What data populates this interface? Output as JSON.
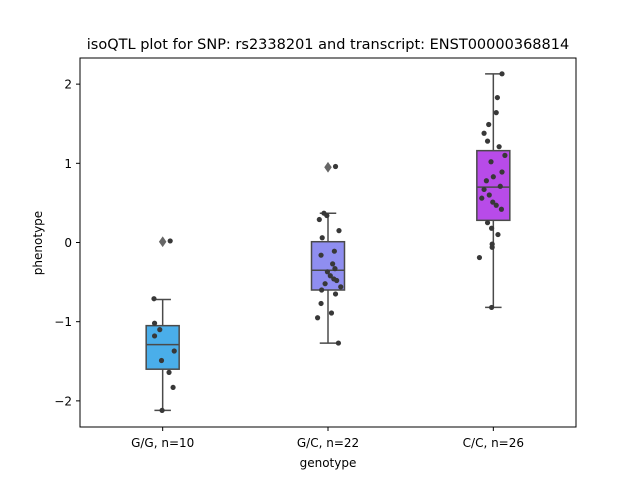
{
  "chart_data": {
    "type": "box",
    "title": "isoQTL plot for SNP: rs2338201 and transcript: ENST00000368814",
    "xlabel": "genotype",
    "ylabel": "phenotype",
    "ylim": [
      -2.33,
      2.33
    ],
    "yticks": [
      -2,
      -1,
      0,
      1,
      2
    ],
    "ytick_labels": [
      "−2",
      "−1",
      "0",
      "1",
      "2"
    ],
    "grid": false,
    "categories": [
      "G/G, n=10",
      "G/C, n=22",
      "C/C, n=26"
    ],
    "boxes": [
      {
        "category": "G/G, n=10",
        "color": "#4aaeea",
        "whisker_low": -2.12,
        "q1": -1.6,
        "median": -1.29,
        "q3": -1.05,
        "whisker_high": -0.72,
        "outliers": [
          0.01
        ],
        "points": [
          [
            -0.15,
            -0.71
          ],
          [
            -0.14,
            -1.02
          ],
          [
            -0.05,
            -1.1
          ],
          [
            -0.14,
            -1.18
          ],
          [
            0.2,
            -1.37
          ],
          [
            -0.02,
            -1.49
          ],
          [
            0.11,
            -1.64
          ],
          [
            0.18,
            -1.83
          ],
          [
            -0.01,
            -2.12
          ],
          [
            0.13,
            0.02
          ]
        ]
      },
      {
        "category": "G/C, n=22",
        "color": "#8f8ef0",
        "whisker_low": -1.27,
        "q1": -0.6,
        "median": -0.35,
        "q3": 0.01,
        "whisker_high": 0.37,
        "outliers": [
          0.95
        ],
        "points": [
          [
            0.13,
            0.96
          ],
          [
            -0.07,
            0.37
          ],
          [
            -0.02,
            0.34
          ],
          [
            -0.15,
            0.29
          ],
          [
            0.19,
            0.15
          ],
          [
            -0.1,
            0.06
          ],
          [
            0.11,
            -0.11
          ],
          [
            -0.12,
            -0.16
          ],
          [
            0.08,
            -0.27
          ],
          [
            0.12,
            -0.33
          ],
          [
            -0.01,
            -0.37
          ],
          [
            0.04,
            -0.42
          ],
          [
            0.1,
            -0.46
          ],
          [
            0.15,
            -0.48
          ],
          [
            0.22,
            -0.56
          ],
          [
            -0.11,
            -0.6
          ],
          [
            0.13,
            -0.65
          ],
          [
            -0.12,
            -0.77
          ],
          [
            0.06,
            -0.89
          ],
          [
            -0.18,
            -0.95
          ],
          [
            0.18,
            -1.27
          ],
          [
            -0.05,
            -0.52
          ]
        ]
      },
      {
        "category": "C/C, n=26",
        "color": "#b84be9",
        "whisker_low": -0.82,
        "q1": 0.28,
        "median": 0.7,
        "q3": 1.16,
        "whisker_high": 2.13,
        "outliers": [],
        "points": [
          [
            0.15,
            2.13
          ],
          [
            0.07,
            1.83
          ],
          [
            0.05,
            1.64
          ],
          [
            -0.08,
            1.49
          ],
          [
            -0.16,
            1.38
          ],
          [
            -0.1,
            1.28
          ],
          [
            0.1,
            1.21
          ],
          [
            0.2,
            1.1
          ],
          [
            -0.04,
            1.02
          ],
          [
            0.15,
            0.89
          ],
          [
            -0.12,
            0.78
          ],
          [
            0.0,
            0.83
          ],
          [
            0.12,
            0.71
          ],
          [
            -0.16,
            0.67
          ],
          [
            -0.07,
            0.6
          ],
          [
            -0.2,
            0.56
          ],
          [
            -0.01,
            0.51
          ],
          [
            0.05,
            0.47
          ],
          [
            0.14,
            0.42
          ],
          [
            -0.1,
            0.25
          ],
          [
            -0.03,
            0.18
          ],
          [
            0.08,
            0.1
          ],
          [
            -0.02,
            -0.02
          ],
          [
            -0.02,
            -0.06
          ],
          [
            -0.24,
            -0.19
          ],
          [
            -0.03,
            -0.82
          ]
        ]
      }
    ]
  }
}
